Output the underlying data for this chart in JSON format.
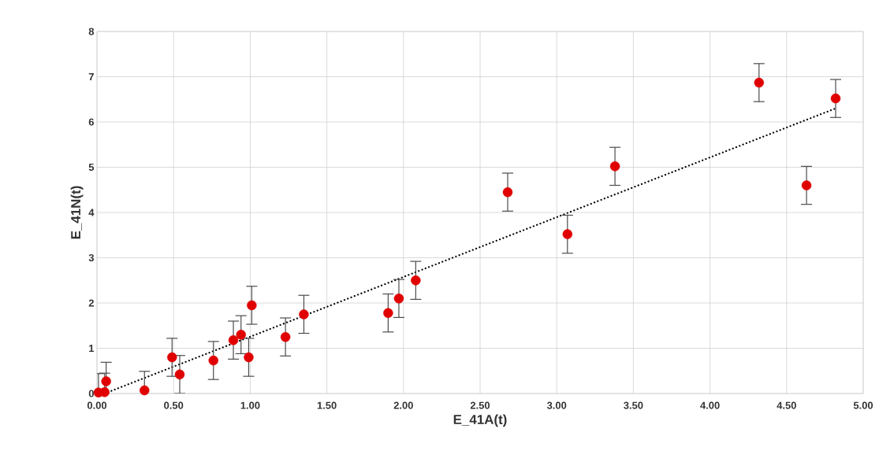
{
  "chart_data": {
    "type": "scatter",
    "xlabel": "E_41A(t)",
    "ylabel": "E_41N(t)",
    "xlim": [
      0,
      5
    ],
    "ylim": [
      0,
      8
    ],
    "xticks": [
      {
        "value": 0,
        "label": "0.00"
      },
      {
        "value": 0.5,
        "label": "0.50"
      },
      {
        "value": 1,
        "label": "1.00"
      },
      {
        "value": 1.5,
        "label": "1.50"
      },
      {
        "value": 2,
        "label": "2.00"
      },
      {
        "value": 2.5,
        "label": "2.50"
      },
      {
        "value": 3,
        "label": "3.00"
      },
      {
        "value": 3.5,
        "label": "3.50"
      },
      {
        "value": 4,
        "label": "4.00"
      },
      {
        "value": 4.5,
        "label": "4.50"
      },
      {
        "value": 5,
        "label": "5.00"
      }
    ],
    "yticks": [
      0,
      1,
      2,
      3,
      4,
      5,
      6,
      7,
      8
    ],
    "grid": true,
    "series": [
      {
        "marker": "circle",
        "color": "#e00000",
        "x": [
          0.01,
          0.05,
          0.06,
          0.31,
          0.49,
          0.54,
          0.76,
          0.89,
          0.94,
          0.99,
          1.01,
          1.23,
          1.35,
          1.9,
          1.97,
          2.08,
          2.68,
          3.07,
          3.38,
          4.32,
          4.63,
          4.82
        ],
        "values": [
          0.02,
          0.03,
          0.27,
          0.07,
          0.8,
          0.42,
          0.73,
          1.18,
          1.3,
          0.8,
          1.95,
          1.25,
          1.75,
          1.78,
          2.1,
          2.5,
          4.45,
          3.52,
          5.02,
          6.87,
          4.6,
          6.52
        ],
        "errors": [
          0.42,
          0.42,
          0.42,
          0.42,
          0.42,
          0.42,
          0.42,
          0.42,
          0.42,
          0.42,
          0.42,
          0.42,
          0.42,
          0.42,
          0.42,
          0.42,
          0.42,
          0.42,
          0.42,
          0.42,
          0.42,
          0.42
        ]
      },
      {
        "type": "line",
        "color": "#000000",
        "line_style": "dotted",
        "marker": "none",
        "x": [
          0.05,
          4.82
        ],
        "values": [
          0.0,
          6.3
        ]
      }
    ]
  }
}
